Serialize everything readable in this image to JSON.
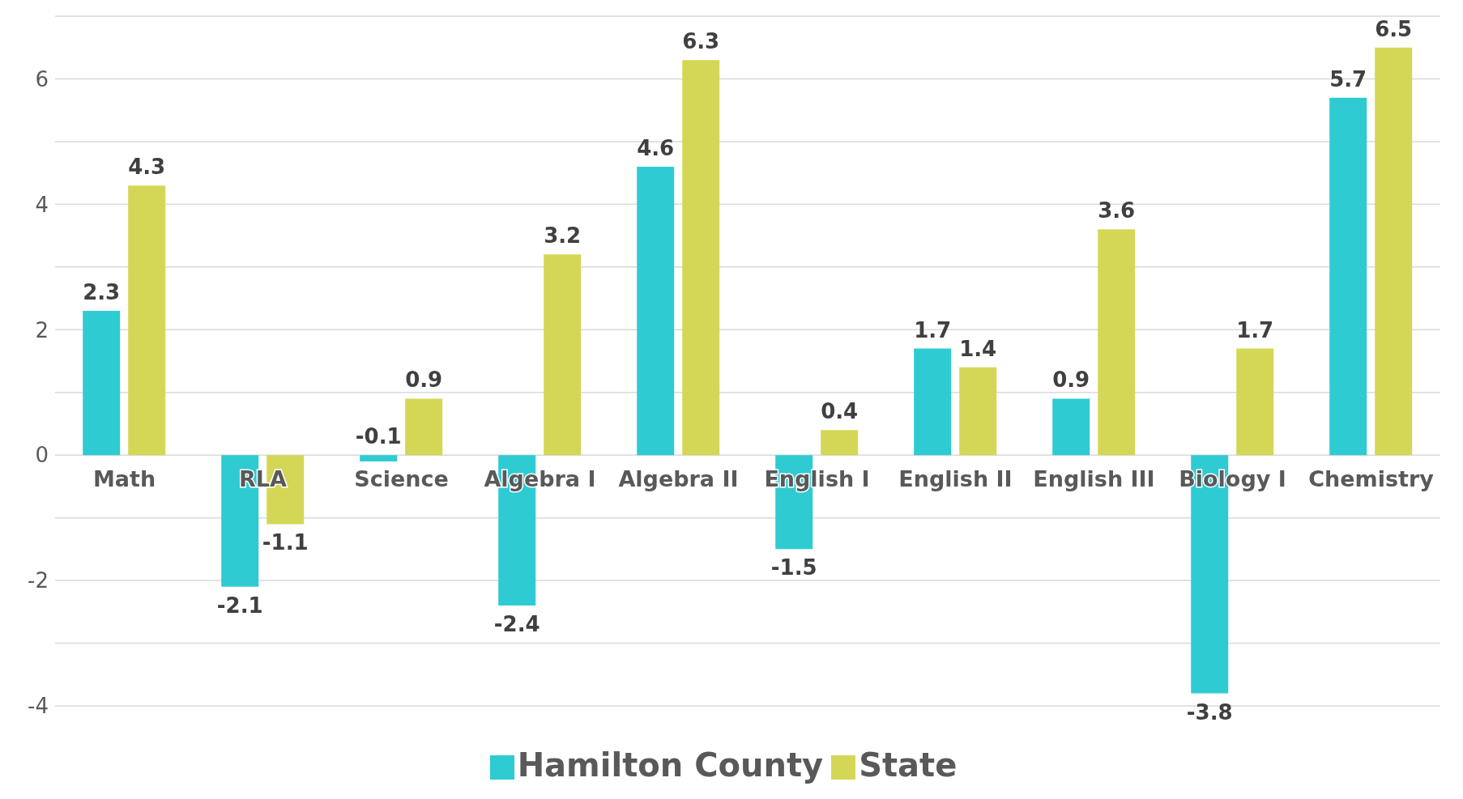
{
  "chart_data": {
    "type": "bar",
    "categories": [
      "Math",
      "RLA",
      "Science",
      "Algebra I",
      "Algebra II",
      "English I",
      "English II",
      "English III",
      "Biology I",
      "Chemistry"
    ],
    "series": [
      {
        "name": "Hamilton County",
        "color": "#2ecbd3",
        "values": [
          2.3,
          -2.1,
          -0.1,
          -2.4,
          4.6,
          -1.5,
          1.7,
          0.9,
          -3.8,
          5.7
        ]
      },
      {
        "name": "State",
        "color": "#d4d756",
        "values": [
          4.3,
          -1.1,
          0.9,
          3.2,
          6.3,
          0.4,
          1.4,
          3.6,
          1.7,
          6.5
        ]
      }
    ],
    "ylim": [
      -4,
      7
    ],
    "yticks": [
      -4,
      {
        "value": -3,
        "label": null
      },
      -2,
      {
        "value": -1,
        "label": null
      },
      0,
      {
        "value": 1,
        "label": null
      },
      2,
      {
        "value": 3,
        "label": null
      },
      4,
      {
        "value": 5,
        "label": null
      },
      6,
      {
        "value": 7,
        "label": null
      }
    ],
    "grid": "y",
    "legend": "bottom",
    "data_labels": true
  }
}
